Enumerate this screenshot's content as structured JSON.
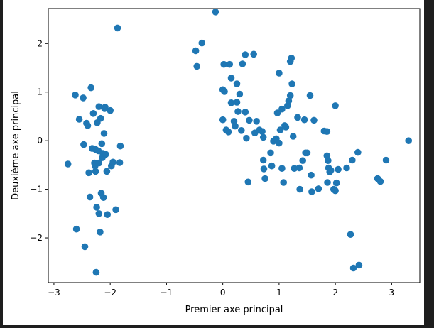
{
  "chart_data": {
    "type": "scatter",
    "title": "",
    "xlabel": "Premier axe principal",
    "ylabel": "Deuxième axe principal",
    "xlim": [
      -3.1,
      3.5
    ],
    "ylim": [
      -2.92,
      2.72
    ],
    "grid": false,
    "marker_color": "#1f77b4",
    "xticks": [
      -3,
      -2,
      -1,
      0,
      1,
      2,
      3
    ],
    "yticks": [
      -2,
      -1,
      0,
      1,
      2
    ],
    "xtick_labels": [
      "−3",
      "−2",
      "−1",
      "0",
      "1",
      "2",
      "3"
    ],
    "ytick_labels": [
      "−2",
      "−1",
      "0",
      "1",
      "2"
    ],
    "points": [
      [
        -2.75,
        -0.48
      ],
      [
        -2.62,
        0.94
      ],
      [
        -2.6,
        -1.82
      ],
      [
        -2.55,
        0.44
      ],
      [
        -2.48,
        0.88
      ],
      [
        -2.45,
        -2.18
      ],
      [
        -2.47,
        -0.08
      ],
      [
        -2.42,
        0.36
      ],
      [
        -2.4,
        0.31
      ],
      [
        -2.38,
        -0.66
      ],
      [
        -2.36,
        -1.16
      ],
      [
        -2.34,
        1.09
      ],
      [
        -2.32,
        -0.16
      ],
      [
        -2.3,
        0.56
      ],
      [
        -2.28,
        -0.46
      ],
      [
        -2.27,
        -0.52
      ],
      [
        -2.26,
        -0.63
      ],
      [
        -2.25,
        -2.71
      ],
      [
        -2.24,
        -1.37
      ],
      [
        -2.23,
        0.37
      ],
      [
        -2.21,
        -0.21
      ],
      [
        -2.2,
        0.7
      ],
      [
        -2.2,
        -1.5
      ],
      [
        -2.18,
        -1.88
      ],
      [
        -2.17,
        0.46
      ],
      [
        -2.16,
        -1.08
      ],
      [
        -2.14,
        -0.35
      ],
      [
        -2.13,
        -0.26
      ],
      [
        -2.12,
        -1.17
      ],
      [
        -2.11,
        0.15
      ],
      [
        -2.1,
        0.66
      ],
      [
        -2.09,
        0.69
      ],
      [
        -2.08,
        -0.28
      ],
      [
        -2.06,
        -0.63
      ],
      [
        -2.05,
        -1.52
      ],
      [
        -2.0,
        0.62
      ],
      [
        -1.98,
        -0.52
      ],
      [
        -1.95,
        -0.44
      ],
      [
        -1.9,
        -1.42
      ],
      [
        -1.87,
        2.32
      ],
      [
        -1.83,
        -0.45
      ],
      [
        -1.82,
        -0.11
      ],
      [
        -2.2,
        -0.46
      ],
      [
        -2.15,
        -0.06
      ],
      [
        -2.26,
        -0.18
      ],
      [
        -0.48,
        1.85
      ],
      [
        -0.46,
        1.53
      ],
      [
        -0.37,
        2.01
      ],
      [
        -0.13,
        2.65
      ],
      [
        0.0,
        1.05
      ],
      [
        0.0,
        0.43
      ],
      [
        0.02,
        1.57
      ],
      [
        0.03,
        1.01
      ],
      [
        0.06,
        0.22
      ],
      [
        0.1,
        0.18
      ],
      [
        0.12,
        1.57
      ],
      [
        0.15,
        1.29
      ],
      [
        0.15,
        0.78
      ],
      [
        0.2,
        0.4
      ],
      [
        0.22,
        0.3
      ],
      [
        0.25,
        0.79
      ],
      [
        0.25,
        1.17
      ],
      [
        0.27,
        0.6
      ],
      [
        0.3,
        0.96
      ],
      [
        0.33,
        0.21
      ],
      [
        0.35,
        1.58
      ],
      [
        0.4,
        1.77
      ],
      [
        0.4,
        0.59
      ],
      [
        0.42,
        0.05
      ],
      [
        0.45,
        -0.85
      ],
      [
        0.47,
        0.42
      ],
      [
        0.55,
        1.78
      ],
      [
        0.57,
        0.16
      ],
      [
        0.6,
        0.4
      ],
      [
        0.65,
        0.22
      ],
      [
        0.7,
        0.19
      ],
      [
        0.72,
        0.07
      ],
      [
        0.72,
        -0.4
      ],
      [
        0.73,
        -0.58
      ],
      [
        0.75,
        -0.78
      ],
      [
        0.85,
        -0.25
      ],
      [
        0.87,
        -0.52
      ],
      [
        0.9,
        -0.01
      ],
      [
        0.95,
        0.04
      ],
      [
        0.97,
        0.57
      ],
      [
        1.0,
        -0.05
      ],
      [
        1.0,
        1.39
      ],
      [
        1.02,
        0.22
      ],
      [
        1.05,
        0.65
      ],
      [
        1.05,
        -0.57
      ],
      [
        1.08,
        -0.86
      ],
      [
        1.1,
        0.31
      ],
      [
        1.12,
        0.28
      ],
      [
        1.15,
        0.72
      ],
      [
        1.17,
        0.82
      ],
      [
        1.2,
        0.93
      ],
      [
        1.2,
        1.63
      ],
      [
        1.22,
        1.7
      ],
      [
        1.23,
        1.17
      ],
      [
        1.25,
        0.09
      ],
      [
        1.27,
        -0.57
      ],
      [
        1.33,
        0.48
      ],
      [
        1.36,
        -0.56
      ],
      [
        1.37,
        -1.0
      ],
      [
        1.42,
        -0.41
      ],
      [
        1.45,
        0.43
      ],
      [
        1.47,
        -0.25
      ],
      [
        1.5,
        -0.25
      ],
      [
        1.55,
        0.93
      ],
      [
        1.57,
        -0.71
      ],
      [
        1.58,
        -1.05
      ],
      [
        1.62,
        0.42
      ],
      [
        1.7,
        -0.99
      ],
      [
        1.8,
        0.2
      ],
      [
        1.85,
        0.19
      ],
      [
        1.85,
        -0.31
      ],
      [
        1.86,
        -0.86
      ],
      [
        1.87,
        -0.41
      ],
      [
        1.88,
        -0.56
      ],
      [
        1.9,
        -0.64
      ],
      [
        1.92,
        -0.61
      ],
      [
        1.97,
        -1.0
      ],
      [
        2.0,
        -1.03
      ],
      [
        2.0,
        0.72
      ],
      [
        2.02,
        -0.87
      ],
      [
        2.05,
        -0.59
      ],
      [
        2.2,
        -0.56
      ],
      [
        2.27,
        -1.93
      ],
      [
        2.3,
        -0.4
      ],
      [
        2.32,
        -2.62
      ],
      [
        2.4,
        -0.24
      ],
      [
        2.42,
        -2.56
      ],
      [
        2.75,
        -0.78
      ],
      [
        2.8,
        -0.84
      ],
      [
        2.9,
        -0.4
      ],
      [
        3.3,
        0.0
      ]
    ]
  }
}
